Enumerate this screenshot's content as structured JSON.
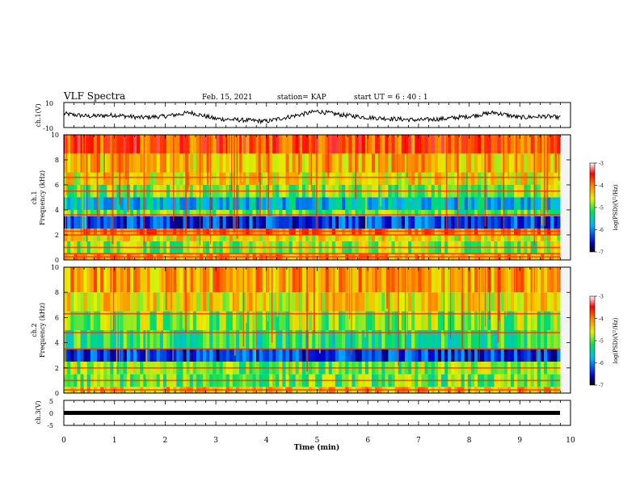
{
  "header": {
    "title": "VLF Spectra",
    "date": "Feb. 15, 2021",
    "station": "station= KAP",
    "start": "start UT = 6 : 40 : 1"
  },
  "colorbar": {
    "label": "log(PSD)(V²/Hz)",
    "ticks": [
      "-3",
      "-4",
      "-5",
      "-6",
      "-7"
    ],
    "range": [
      -7,
      -3
    ],
    "colors": [
      "#000000",
      "#0000c8",
      "#00b4ff",
      "#00e060",
      "#e8f000",
      "#ff8000",
      "#ff0000",
      "#ffffff"
    ]
  },
  "chart_data": [
    {
      "id": "ch1-waveform",
      "type": "line",
      "ylabel": "ch.1(V)",
      "ylim": [
        -10,
        10
      ],
      "yticks": [
        "10",
        "-10"
      ],
      "xlim": [
        0,
        10
      ],
      "x": [
        0,
        0.5,
        1.0,
        1.5,
        2.0,
        2.5,
        3.0,
        3.5,
        4.0,
        4.5,
        5.0,
        5.5,
        6.0,
        6.5,
        7.0,
        7.5,
        8.0,
        8.5,
        9.0,
        9.5,
        9.8
      ],
      "values": [
        1,
        -1,
        0,
        -2,
        -1,
        2,
        -3,
        -4,
        -5,
        -1,
        3,
        0,
        -2,
        -3,
        -4,
        -3,
        -1,
        2,
        -2,
        -1,
        -2
      ]
    },
    {
      "id": "ch1-spectrogram",
      "type": "heatmap",
      "ylabel": "ch.1\nFrequency (kHz)",
      "ylim": [
        0,
        10
      ],
      "yticks": [
        "0",
        "2",
        "4",
        "6",
        "8",
        "10"
      ],
      "xlim": [
        0,
        10
      ],
      "z_label": "log(PSD)(V²/Hz)",
      "band_levels": [
        {
          "f": [
            0,
            0.5
          ],
          "level": -4.2
        },
        {
          "f": [
            0.5,
            1.5
          ],
          "level": -4.8
        },
        {
          "f": [
            1.5,
            2.0
          ],
          "level": -4.5
        },
        {
          "f": [
            2.0,
            2.5
          ],
          "level": -4.0
        },
        {
          "f": [
            2.5,
            3.5
          ],
          "level": -6.3
        },
        {
          "f": [
            3.5,
            4.0
          ],
          "level": -5.0
        },
        {
          "f": [
            4.0,
            5.0
          ],
          "level": -5.7
        },
        {
          "f": [
            5.0,
            6.0
          ],
          "level": -4.9
        },
        {
          "f": [
            6.0,
            7.0
          ],
          "level": -4.5
        },
        {
          "f": [
            7.0,
            8.5
          ],
          "level": -4.3
        },
        {
          "f": [
            8.5,
            10
          ],
          "level": -3.8
        }
      ],
      "lines_kHz": [
        0.25,
        0.5,
        1.0,
        2.0,
        2.3,
        3.6,
        5.5,
        6.6
      ]
    },
    {
      "id": "ch2-spectrogram",
      "type": "heatmap",
      "ylabel": "ch.2\nFrequency (kHz)",
      "ylim": [
        0,
        10
      ],
      "yticks": [
        "0",
        "2",
        "4",
        "6",
        "8",
        "10"
      ],
      "xlim": [
        0,
        10
      ],
      "z_label": "log(PSD)(V²/Hz)",
      "band_levels": [
        {
          "f": [
            0,
            0.5
          ],
          "level": -4.3
        },
        {
          "f": [
            0.5,
            1.5
          ],
          "level": -5.0
        },
        {
          "f": [
            1.5,
            2.5
          ],
          "level": -4.9
        },
        {
          "f": [
            2.5,
            3.5
          ],
          "level": -6.3
        },
        {
          "f": [
            3.5,
            5.0
          ],
          "level": -5.2
        },
        {
          "f": [
            5.0,
            6.5
          ],
          "level": -4.9
        },
        {
          "f": [
            6.5,
            8.0
          ],
          "level": -4.5
        },
        {
          "f": [
            8.0,
            10
          ],
          "level": -4.2
        }
      ],
      "lines_kHz": [
        0.25,
        1.0,
        2.0,
        3.5,
        4.8,
        6.3
      ]
    },
    {
      "id": "ch3-waveform",
      "type": "line",
      "ylabel": "ch.3(V)",
      "ylim": [
        -5,
        5
      ],
      "yticks": [
        "5",
        "0",
        "-5"
      ],
      "xlim": [
        0,
        10
      ],
      "x": [
        0,
        9.8
      ],
      "values": [
        0,
        0
      ],
      "xlabel": "Time (min)",
      "xticks": [
        "0",
        "1",
        "2",
        "3",
        "4",
        "5",
        "6",
        "7",
        "8",
        "9",
        "10"
      ]
    }
  ]
}
